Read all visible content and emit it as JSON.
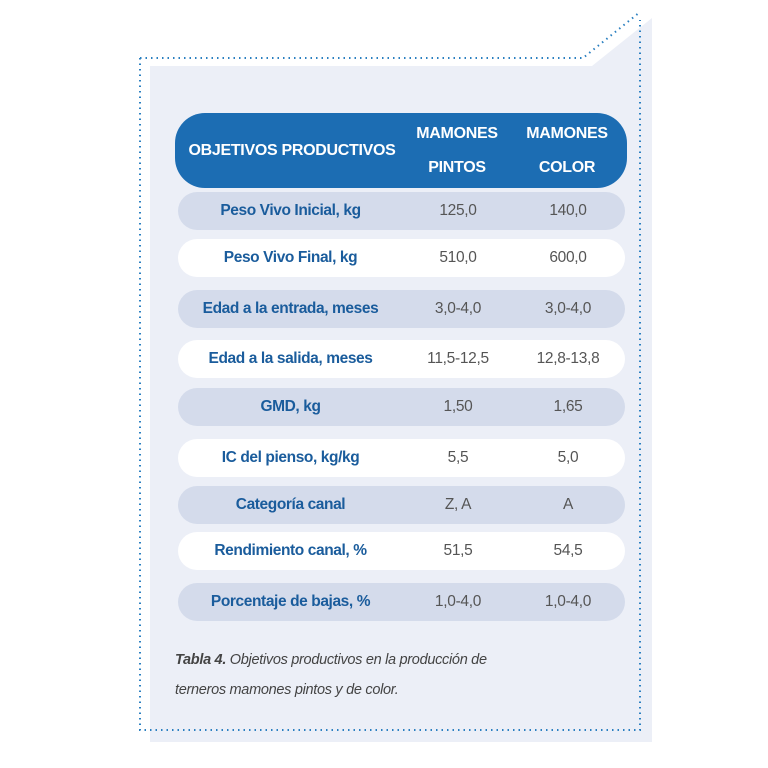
{
  "table": {
    "header": [
      "OBJETIVOS PRODUCTIVOS",
      "MAMONES PINTOS",
      "MAMONES COLOR"
    ],
    "rows": [
      [
        "Peso Vivo Inicial, kg",
        "125,0",
        "140,0"
      ],
      [
        "Peso Vivo Final, kg",
        "510,0",
        "600,0"
      ],
      [
        "Edad a la entrada, meses",
        "3,0-4,0",
        "3,0-4,0"
      ],
      [
        "Edad a la salida, meses",
        "11,5-12,5",
        "12,8-13,8"
      ],
      [
        "GMD, kg",
        "1,50",
        "1,65"
      ],
      [
        "IC del pienso, kg/kg",
        "5,5",
        "5,0"
      ],
      [
        "Categoría canal",
        "Z, A",
        "A"
      ],
      [
        "Rendimiento canal, %",
        "51,5",
        "54,5"
      ],
      [
        "Porcentaje de bajas, %",
        "1,0-4,0",
        "1,0-4,0"
      ]
    ]
  },
  "caption": {
    "label": "Tabla 4.",
    "text": "Objetivos productivos en la producción de terneros mamones pintos y de color."
  }
}
